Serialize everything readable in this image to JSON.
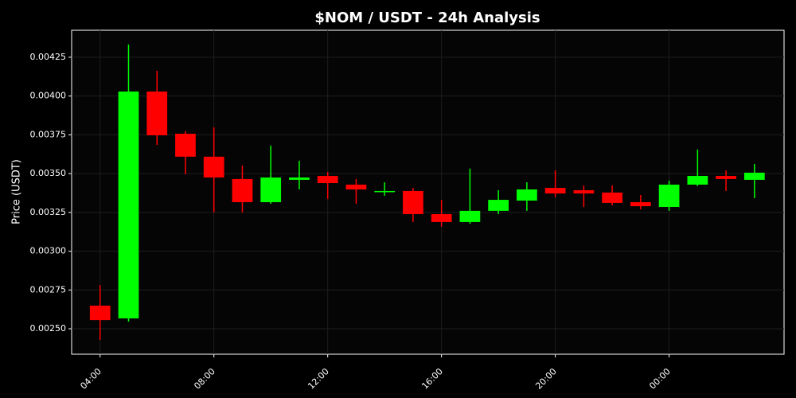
{
  "chart_data": {
    "type": "candlestick",
    "title": "$NOM / USDT - 24h Analysis",
    "y_label": "Price (USDT)",
    "categories": [
      "04:00",
      null,
      null,
      null,
      "08:00",
      null,
      null,
      null,
      "12:00",
      null,
      null,
      null,
      "16:00",
      null,
      null,
      null,
      "20:00",
      null,
      null,
      null,
      "00:00",
      null,
      null,
      null
    ],
    "open": [
      0.002649,
      0.002567,
      0.004029,
      0.003757,
      0.003609,
      0.003465,
      0.003316,
      0.00346,
      0.003485,
      0.003429,
      0.003383,
      0.003388,
      0.003239,
      0.003188,
      0.00326,
      0.003326,
      0.003408,
      0.003393,
      0.003378,
      0.003316,
      0.003285,
      0.003429,
      0.003485,
      0.00346
    ],
    "high": [
      0.002782,
      0.004332,
      0.004163,
      0.003773,
      0.003798,
      0.003552,
      0.00368,
      0.003583,
      0.003511,
      0.003465,
      0.003444,
      0.003408,
      0.003331,
      0.003532,
      0.003393,
      0.003444,
      0.003521,
      0.003424,
      0.003424,
      0.003362,
      0.003455,
      0.003655,
      0.003521,
      0.003562
    ],
    "low": [
      0.002428,
      0.002546,
      0.003685,
      0.003496,
      0.003249,
      0.003249,
      0.003306,
      0.003398,
      0.003337,
      0.003306,
      0.003357,
      0.003188,
      0.003157,
      0.003177,
      0.003239,
      0.00326,
      0.003347,
      0.003285,
      0.003295,
      0.00327,
      0.00326,
      0.003419,
      0.003388,
      0.003342
    ],
    "close": [
      0.002556,
      0.004029,
      0.003747,
      0.003609,
      0.003475,
      0.003316,
      0.003475,
      0.003475,
      0.003439,
      0.003398,
      0.003388,
      0.003239,
      0.003188,
      0.00326,
      0.003331,
      0.003398,
      0.003372,
      0.003372,
      0.003311,
      0.00329,
      0.003429,
      0.003485,
      0.003465,
      0.003506
    ],
    "up_color": "#00ff00",
    "down_color": "#ff0000",
    "ylim": [
      0.002336,
      0.004424
    ],
    "yticks": [
      {
        "value": 0.0025,
        "label": "0.00250"
      },
      {
        "value": 0.00275,
        "label": "0.00275"
      },
      {
        "value": 0.003,
        "label": "0.00300"
      },
      {
        "value": 0.00325,
        "label": "0.00325"
      },
      {
        "value": 0.0035,
        "label": "0.00350"
      },
      {
        "value": 0.00375,
        "label": "0.00375"
      },
      {
        "value": 0.004,
        "label": "0.00400"
      },
      {
        "value": 0.00425,
        "label": "0.00425"
      }
    ],
    "grid": true
  }
}
